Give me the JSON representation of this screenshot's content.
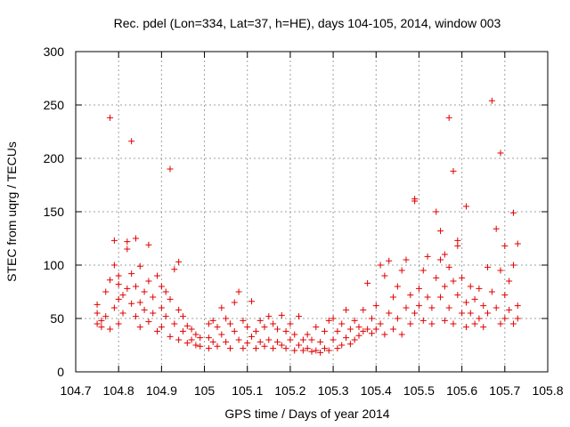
{
  "chart_data": {
    "type": "scatter",
    "title": "Rec. pdel (Lon=334, Lat=37, h=HE), days 104-105, 2014, window 003",
    "xlabel": "GPS time / Days of year 2014",
    "ylabel": "STEC from uqrg / TECUs",
    "xlim": [
      104.7,
      105.8
    ],
    "ylim": [
      0,
      300
    ],
    "xticks": [
      "104.7",
      "104.8",
      "104.9",
      "105",
      "105.1",
      "105.2",
      "105.3",
      "105.4",
      "105.5",
      "105.6",
      "105.7",
      "105.8"
    ],
    "yticks": [
      "0",
      "50",
      "100",
      "150",
      "200",
      "250",
      "300"
    ],
    "grid": true,
    "legend": "none",
    "marker": "plus",
    "color": "#e00000",
    "points": [
      [
        104.75,
        45
      ],
      [
        104.75,
        55
      ],
      [
        104.75,
        63
      ],
      [
        104.76,
        42
      ],
      [
        104.76,
        48
      ],
      [
        104.77,
        52
      ],
      [
        104.77,
        75
      ],
      [
        104.78,
        86
      ],
      [
        104.78,
        238
      ],
      [
        104.78,
        40
      ],
      [
        104.79,
        100
      ],
      [
        104.79,
        123
      ],
      [
        104.79,
        60
      ],
      [
        104.8,
        82
      ],
      [
        104.8,
        90
      ],
      [
        104.8,
        68
      ],
      [
        104.8,
        45
      ],
      [
        104.81,
        55
      ],
      [
        104.81,
        72
      ],
      [
        104.82,
        115
      ],
      [
        104.82,
        122
      ],
      [
        104.82,
        78
      ],
      [
        104.83,
        216
      ],
      [
        104.83,
        92
      ],
      [
        104.83,
        64
      ],
      [
        104.84,
        125
      ],
      [
        104.84,
        80
      ],
      [
        104.84,
        52
      ],
      [
        104.85,
        99
      ],
      [
        104.85,
        65
      ],
      [
        104.85,
        42
      ],
      [
        104.86,
        75
      ],
      [
        104.86,
        58
      ],
      [
        104.87,
        119
      ],
      [
        104.87,
        85
      ],
      [
        104.87,
        47
      ],
      [
        104.88,
        70
      ],
      [
        104.88,
        55
      ],
      [
        104.89,
        90
      ],
      [
        104.89,
        38
      ],
      [
        104.9,
        80
      ],
      [
        104.9,
        60
      ],
      [
        104.9,
        42
      ],
      [
        104.91,
        75
      ],
      [
        104.91,
        52
      ],
      [
        104.92,
        190
      ],
      [
        104.92,
        68
      ],
      [
        104.92,
        33
      ],
      [
        104.93,
        96
      ],
      [
        104.93,
        45
      ],
      [
        104.94,
        103
      ],
      [
        104.94,
        58
      ],
      [
        104.94,
        30
      ],
      [
        104.95,
        52
      ],
      [
        104.95,
        38
      ],
      [
        104.96,
        43
      ],
      [
        104.96,
        27
      ],
      [
        104.97,
        40
      ],
      [
        104.97,
        30
      ],
      [
        104.98,
        35
      ],
      [
        104.98,
        25
      ],
      [
        104.99,
        32
      ],
      [
        104.99,
        24
      ],
      [
        105.01,
        45
      ],
      [
        105.01,
        32
      ],
      [
        105.01,
        22
      ],
      [
        105.02,
        48
      ],
      [
        105.02,
        28
      ],
      [
        105.03,
        42
      ],
      [
        105.03,
        24
      ],
      [
        105.04,
        60
      ],
      [
        105.04,
        35
      ],
      [
        105.05,
        50
      ],
      [
        105.05,
        28
      ],
      [
        105.06,
        45
      ],
      [
        105.06,
        22
      ],
      [
        105.07,
        65
      ],
      [
        105.07,
        38
      ],
      [
        105.08,
        75
      ],
      [
        105.08,
        30
      ],
      [
        105.09,
        48
      ],
      [
        105.09,
        22
      ],
      [
        105.1,
        42
      ],
      [
        105.1,
        27
      ],
      [
        105.11,
        66
      ],
      [
        105.11,
        33
      ],
      [
        105.12,
        38
      ],
      [
        105.12,
        22
      ],
      [
        105.13,
        48
      ],
      [
        105.13,
        28
      ],
      [
        105.14,
        42
      ],
      [
        105.14,
        24
      ],
      [
        105.15,
        52
      ],
      [
        105.15,
        30
      ],
      [
        105.16,
        45
      ],
      [
        105.16,
        22
      ],
      [
        105.17,
        40
      ],
      [
        105.17,
        28
      ],
      [
        105.18,
        53
      ],
      [
        105.18,
        25
      ],
      [
        105.19,
        38
      ],
      [
        105.19,
        22
      ],
      [
        105.2,
        45
      ],
      [
        105.2,
        30
      ],
      [
        105.21,
        35
      ],
      [
        105.21,
        20
      ],
      [
        105.22,
        52
      ],
      [
        105.22,
        25
      ],
      [
        105.23,
        30
      ],
      [
        105.23,
        20
      ],
      [
        105.24,
        35
      ],
      [
        105.24,
        22
      ],
      [
        105.25,
        30
      ],
      [
        105.25,
        19
      ],
      [
        105.26,
        42
      ],
      [
        105.26,
        20
      ],
      [
        105.27,
        28
      ],
      [
        105.27,
        18
      ],
      [
        105.28,
        38
      ],
      [
        105.28,
        22
      ],
      [
        105.29,
        48
      ],
      [
        105.29,
        20
      ],
      [
        105.3,
        50
      ],
      [
        105.3,
        30
      ],
      [
        105.31,
        38
      ],
      [
        105.31,
        22
      ],
      [
        105.32,
        45
      ],
      [
        105.32,
        25
      ],
      [
        105.33,
        58
      ],
      [
        105.33,
        32
      ],
      [
        105.34,
        40
      ],
      [
        105.34,
        26
      ],
      [
        105.35,
        48
      ],
      [
        105.35,
        30
      ],
      [
        105.36,
        42
      ],
      [
        105.36,
        34
      ],
      [
        105.37,
        58
      ],
      [
        105.37,
        38
      ],
      [
        105.38,
        83
      ],
      [
        105.38,
        40
      ],
      [
        105.39,
        50
      ],
      [
        105.39,
        36
      ],
      [
        105.4,
        62
      ],
      [
        105.4,
        40
      ],
      [
        105.41,
        100
      ],
      [
        105.41,
        45
      ],
      [
        105.42,
        90
      ],
      [
        105.42,
        35
      ],
      [
        105.43,
        104
      ],
      [
        105.43,
        55
      ],
      [
        105.44,
        70
      ],
      [
        105.44,
        40
      ],
      [
        105.45,
        80
      ],
      [
        105.45,
        50
      ],
      [
        105.46,
        95
      ],
      [
        105.46,
        35
      ],
      [
        105.47,
        105
      ],
      [
        105.47,
        60
      ],
      [
        105.48,
        72
      ],
      [
        105.48,
        45
      ],
      [
        105.49,
        162
      ],
      [
        105.49,
        160
      ],
      [
        105.49,
        55
      ],
      [
        105.5,
        78
      ],
      [
        105.5,
        62
      ],
      [
        105.51,
        95
      ],
      [
        105.51,
        48
      ],
      [
        105.52,
        108
      ],
      [
        105.52,
        70
      ],
      [
        105.53,
        60
      ],
      [
        105.53,
        45
      ],
      [
        105.54,
        150
      ],
      [
        105.54,
        88
      ],
      [
        105.55,
        132
      ],
      [
        105.55,
        105
      ],
      [
        105.55,
        70
      ],
      [
        105.56,
        110
      ],
      [
        105.56,
        80
      ],
      [
        105.56,
        48
      ],
      [
        105.57,
        238
      ],
      [
        105.57,
        98
      ],
      [
        105.57,
        60
      ],
      [
        105.58,
        188
      ],
      [
        105.58,
        85
      ],
      [
        105.58,
        45
      ],
      [
        105.59,
        123
      ],
      [
        105.59,
        118
      ],
      [
        105.59,
        72
      ],
      [
        105.6,
        88
      ],
      [
        105.6,
        55
      ],
      [
        105.61,
        155
      ],
      [
        105.61,
        65
      ],
      [
        105.61,
        42
      ],
      [
        105.62,
        80
      ],
      [
        105.62,
        55
      ],
      [
        105.63,
        68
      ],
      [
        105.63,
        45
      ],
      [
        105.64,
        78
      ],
      [
        105.64,
        50
      ],
      [
        105.65,
        62
      ],
      [
        105.65,
        42
      ],
      [
        105.66,
        98
      ],
      [
        105.66,
        55
      ],
      [
        105.67,
        254
      ],
      [
        105.67,
        75
      ],
      [
        105.68,
        134
      ],
      [
        105.68,
        60
      ],
      [
        105.69,
        205
      ],
      [
        105.69,
        95
      ],
      [
        105.69,
        45
      ],
      [
        105.7,
        118
      ],
      [
        105.7,
        72
      ],
      [
        105.7,
        50
      ],
      [
        105.71,
        85
      ],
      [
        105.71,
        58
      ],
      [
        105.72,
        149
      ],
      [
        105.72,
        100
      ],
      [
        105.72,
        45
      ],
      [
        105.73,
        120
      ],
      [
        105.73,
        62
      ],
      [
        105.73,
        50
      ]
    ]
  }
}
